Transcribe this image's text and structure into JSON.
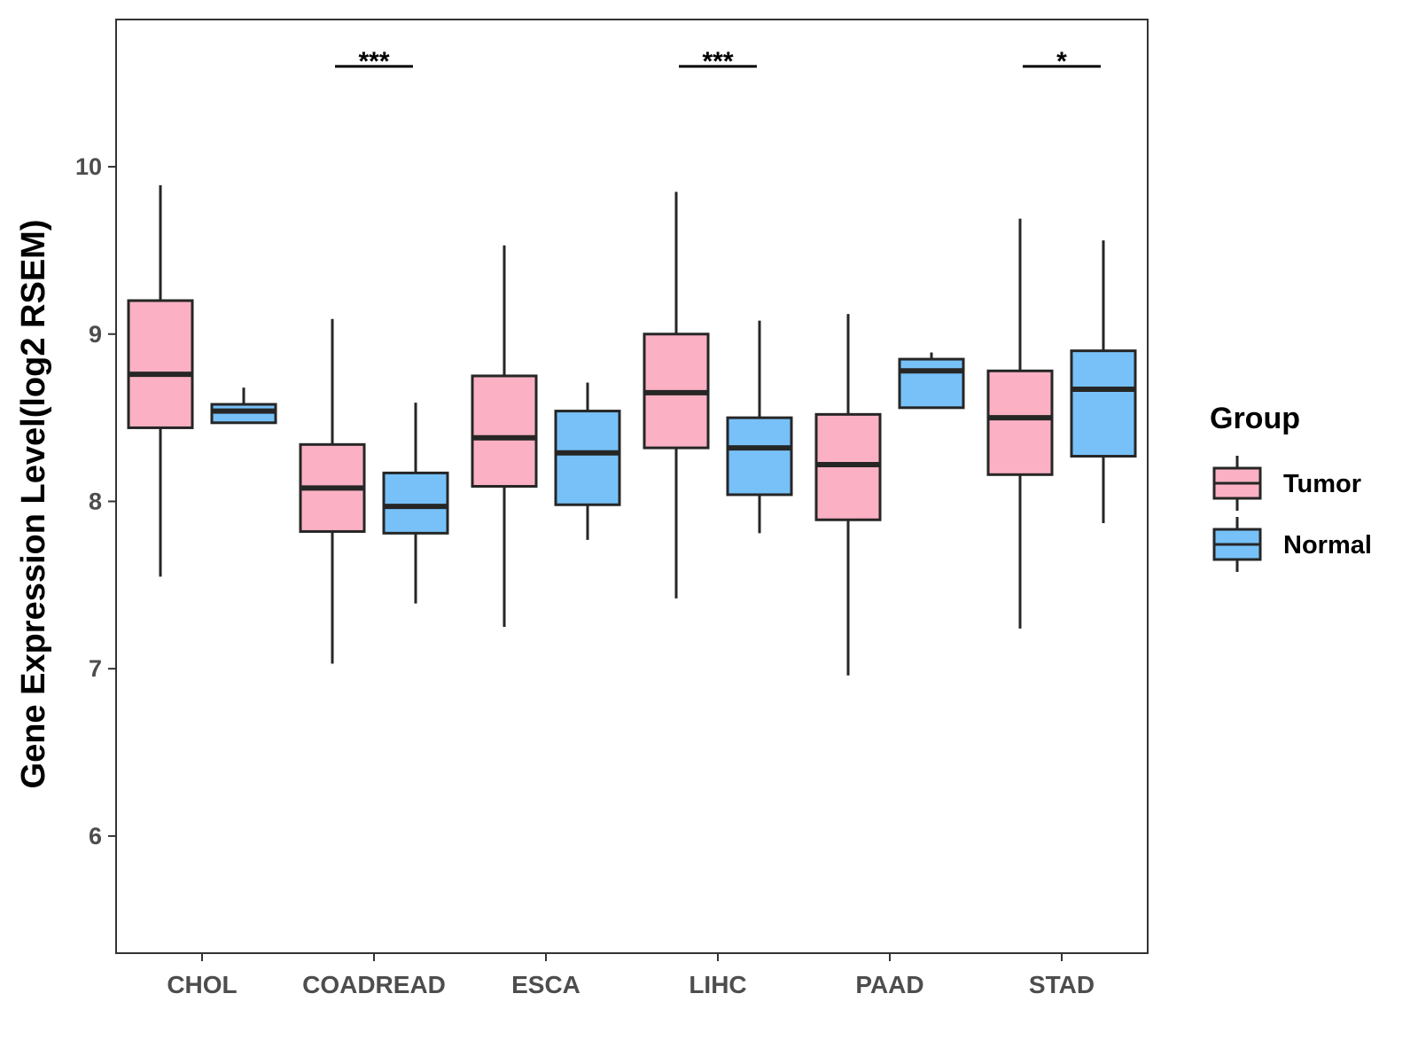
{
  "chart_data": {
    "type": "boxplot",
    "title": "",
    "xlabel": "",
    "ylabel": "Gene Expression Level(log2 RSEM)",
    "ylim": [
      5.3,
      10.88
    ],
    "yticks": [
      6,
      7,
      8,
      9,
      10
    ],
    "categories": [
      "CHOL",
      "COADREAD",
      "ESCA",
      "LIHC",
      "PAAD",
      "STAD"
    ],
    "legend": {
      "title": "Group",
      "position": "right",
      "entries": [
        {
          "name": "Tumor",
          "color": "#FBB1C3"
        },
        {
          "name": "Normal",
          "color": "#77C1F8"
        }
      ]
    },
    "series": [
      {
        "name": "Tumor",
        "color": "#FBB1C3",
        "boxes": [
          {
            "category": "CHOL",
            "min": 7.55,
            "q1": 8.44,
            "median": 8.76,
            "q3": 9.2,
            "max": 9.89
          },
          {
            "category": "COADREAD",
            "min": 7.03,
            "q1": 7.82,
            "median": 8.08,
            "q3": 8.34,
            "max": 9.09
          },
          {
            "category": "ESCA",
            "min": 7.25,
            "q1": 8.09,
            "median": 8.38,
            "q3": 8.75,
            "max": 9.53
          },
          {
            "category": "LIHC",
            "min": 7.42,
            "q1": 8.32,
            "median": 8.65,
            "q3": 9.0,
            "max": 9.85
          },
          {
            "category": "PAAD",
            "min": 6.96,
            "q1": 7.89,
            "median": 8.22,
            "q3": 8.52,
            "max": 9.12
          },
          {
            "category": "STAD",
            "min": 7.24,
            "q1": 8.16,
            "median": 8.5,
            "q3": 8.78,
            "max": 9.69
          }
        ]
      },
      {
        "name": "Normal",
        "color": "#77C1F8",
        "boxes": [
          {
            "category": "CHOL",
            "min": 8.47,
            "q1": 8.47,
            "median": 8.54,
            "q3": 8.58,
            "max": 8.68
          },
          {
            "category": "COADREAD",
            "min": 7.39,
            "q1": 7.81,
            "median": 7.97,
            "q3": 8.17,
            "max": 8.59
          },
          {
            "category": "ESCA",
            "min": 7.77,
            "q1": 7.98,
            "median": 8.29,
            "q3": 8.54,
            "max": 8.71
          },
          {
            "category": "LIHC",
            "min": 7.81,
            "q1": 8.04,
            "median": 8.32,
            "q3": 8.5,
            "max": 9.08
          },
          {
            "category": "PAAD",
            "min": 8.56,
            "q1": 8.56,
            "median": 8.78,
            "q3": 8.85,
            "max": 8.89
          },
          {
            "category": "STAD",
            "min": 7.87,
            "q1": 8.27,
            "median": 8.67,
            "q3": 8.9,
            "max": 9.56
          }
        ]
      }
    ],
    "significance": [
      {
        "category": "COADREAD",
        "label": "***"
      },
      {
        "category": "LIHC",
        "label": "***"
      },
      {
        "category": "STAD",
        "label": "*"
      }
    ],
    "sig_bar_y": 10.6,
    "grid": false
  }
}
